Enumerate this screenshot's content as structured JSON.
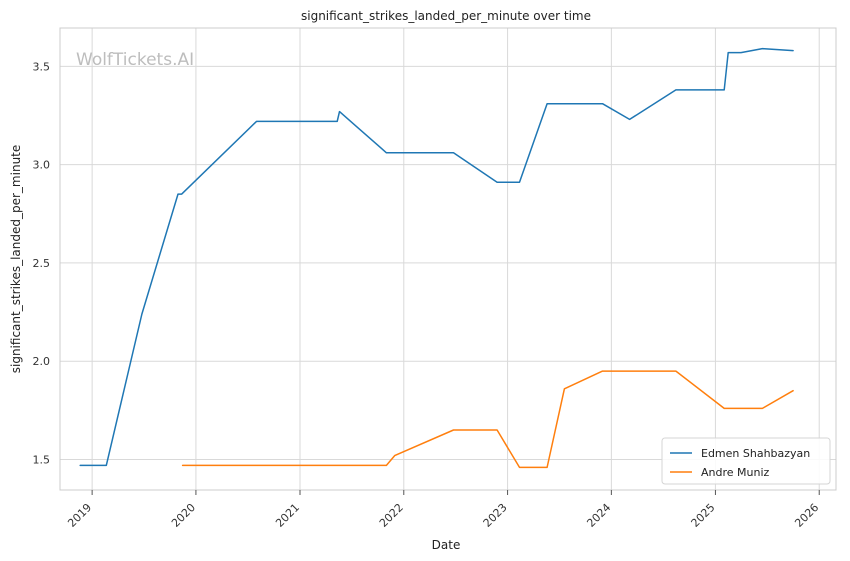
{
  "chart_data": {
    "type": "line",
    "title": "significant_strikes_landed_per_minute over time",
    "xlabel": "Date",
    "ylabel": "significant_strikes_landed_per_minute",
    "watermark": "WolfTickets.AI",
    "x_ticks": [
      "2019",
      "2020",
      "2021",
      "2022",
      "2023",
      "2024",
      "2025",
      "2026"
    ],
    "y_ticks": [
      1.5,
      2.0,
      2.5,
      3.0,
      3.5
    ],
    "y_tick_labels": [
      "1.5",
      "2.0",
      "2.5",
      "3.0",
      "3.5"
    ],
    "xlim": [
      "2018-09-10",
      "2026-03-01"
    ],
    "ylim": [
      1.345,
      3.695
    ],
    "grid": true,
    "legend_position": "lower right",
    "series": [
      {
        "name": "Edmen Shahbazyan",
        "color": "#1f77b4",
        "points": [
          [
            "2018-11-20",
            1.47
          ],
          [
            "2019-02-20",
            1.47
          ],
          [
            "2019-06-25",
            2.24
          ],
          [
            "2019-10-30",
            2.85
          ],
          [
            "2019-11-12",
            2.85
          ],
          [
            "2020-08-01",
            3.22
          ],
          [
            "2021-05-12",
            3.22
          ],
          [
            "2021-05-20",
            3.27
          ],
          [
            "2021-11-01",
            3.06
          ],
          [
            "2022-06-25",
            3.06
          ],
          [
            "2022-11-25",
            2.91
          ],
          [
            "2023-02-12",
            2.91
          ],
          [
            "2023-05-20",
            3.31
          ],
          [
            "2023-12-01",
            3.31
          ],
          [
            "2024-03-05",
            3.23
          ],
          [
            "2024-08-15",
            3.38
          ],
          [
            "2025-02-01",
            3.38
          ],
          [
            "2025-02-15",
            3.57
          ],
          [
            "2025-04-01",
            3.57
          ],
          [
            "2025-06-15",
            3.59
          ],
          [
            "2025-10-01",
            3.58
          ]
        ]
      },
      {
        "name": "Andre Muniz",
        "color": "#ff7f0e",
        "points": [
          [
            "2019-11-15",
            1.47
          ],
          [
            "2020-08-01",
            1.47
          ],
          [
            "2021-11-01",
            1.47
          ],
          [
            "2021-11-30",
            1.52
          ],
          [
            "2022-06-25",
            1.65
          ],
          [
            "2022-11-25",
            1.65
          ],
          [
            "2023-02-12",
            1.46
          ],
          [
            "2023-05-20",
            1.46
          ],
          [
            "2023-07-20",
            1.86
          ],
          [
            "2023-12-01",
            1.95
          ],
          [
            "2024-08-15",
            1.95
          ],
          [
            "2025-02-01",
            1.76
          ],
          [
            "2025-06-15",
            1.76
          ],
          [
            "2025-10-01",
            1.85
          ]
        ]
      }
    ]
  }
}
